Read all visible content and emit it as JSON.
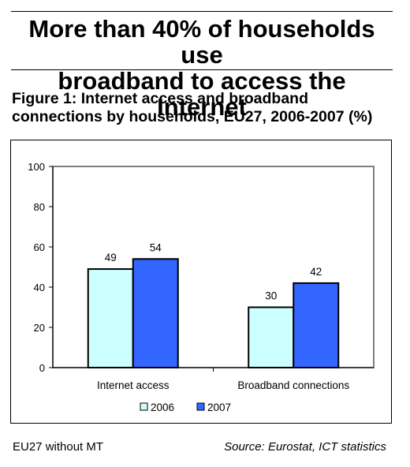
{
  "headline": {
    "line1": "More than 40% of households use",
    "line2": "broadband to access the Internet"
  },
  "figure_title": {
    "line1": "Figure 1: Internet access and broadband",
    "line2": "connections by households, EU27, 2006-2007 (%)"
  },
  "footnote": "EU27 without MT",
  "source": "Source: Eurostat, ICT statistics",
  "chart_data": {
    "type": "bar",
    "title": "Figure 1: Internet access and broadband connections by households, EU27, 2006-2007 (%)",
    "categories": [
      "Internet access",
      "Broadband connections"
    ],
    "series": [
      {
        "name": "2006",
        "values": [
          49,
          30
        ],
        "color": "#ccffff"
      },
      {
        "name": "2007",
        "values": [
          54,
          42
        ],
        "color": "#3366ff"
      }
    ],
    "ylim": [
      0,
      100
    ],
    "yticks": [
      0,
      20,
      40,
      60,
      80,
      100
    ],
    "grid": false,
    "legend_position": "bottom",
    "data_labels": true,
    "plot_area_border": "#808080"
  }
}
